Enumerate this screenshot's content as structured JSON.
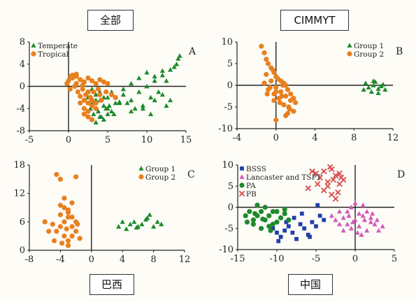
{
  "panel_titles": {
    "top_left": "全部",
    "top_right": "CIMMYT",
    "bottom_left": "巴西",
    "bottom_right": "中国"
  },
  "colors": {
    "green": "#1e8a2c",
    "orange": "#e8801e",
    "blue": "#1f3fa8",
    "magenta": "#d15ab8",
    "red": "#d94848",
    "axis": "#222222"
  },
  "chart_data": [
    {
      "panel_letter": "A",
      "type": "scatter",
      "xlim": [
        -5,
        15
      ],
      "ylim": [
        -8,
        8
      ],
      "xticks": [
        -5,
        0,
        5,
        10,
        15
      ],
      "yticks": [
        -8,
        -4,
        0,
        4,
        8
      ],
      "legend_position": "top-left",
      "series": [
        {
          "name": "Temperate",
          "marker": "triangle",
          "color": "#1e8a2c",
          "x": [
            2.5,
            3.0,
            3.5,
            4.0,
            4.5,
            5.0,
            5.5,
            6.0,
            2.8,
            3.2,
            3.8,
            4.2,
            4.8,
            5.2,
            5.8,
            6.5,
            3.0,
            3.5,
            4.0,
            4.5,
            5.0,
            5.5,
            2.5,
            3.0,
            3.5,
            4.0,
            4.5,
            5.0,
            6.0,
            7.0,
            8.0,
            9.0,
            10.0,
            11.0,
            12.0,
            13.0,
            14.0,
            7.5,
            8.5,
            9.5,
            10.5,
            11.5,
            12.5,
            13.5,
            8.0,
            9.0,
            10.0,
            11.0,
            12.0,
            13.0,
            6.5,
            7.0,
            8.0,
            9.5,
            11.0,
            12.5,
            13.8,
            14.2,
            12.0,
            10.5
          ],
          "y": [
            -2.0,
            -3.0,
            -1.5,
            -2.5,
            -3.5,
            -2.0,
            -1.0,
            -3.0,
            -4.0,
            -5.0,
            -4.5,
            -5.5,
            -4.0,
            -3.5,
            -5.0,
            -3.0,
            -6.0,
            -6.5,
            -5.5,
            -6.0,
            -5.0,
            -4.5,
            -1.0,
            -0.5,
            -2.5,
            -1.0,
            -2.0,
            -4.0,
            -2.0,
            -1.5,
            -2.5,
            -1.0,
            0.0,
            1.0,
            2.0,
            3.0,
            5.0,
            -3.0,
            -4.0,
            -3.5,
            -2.0,
            -1.0,
            1.0,
            3.5,
            0.5,
            1.5,
            2.5,
            1.8,
            -1.5,
            -2.5,
            -2.8,
            -0.5,
            -4.5,
            -4.0,
            -2.5,
            -3.5,
            4.0,
            5.5,
            2.8,
            -5.0
          ]
        },
        {
          "name": "Tropical",
          "marker": "circle",
          "color": "#e8801e",
          "x": [
            0.0,
            0.5,
            1.0,
            1.5,
            2.0,
            2.5,
            3.0,
            3.5,
            4.0,
            4.5,
            5.0,
            0.2,
            0.8,
            1.2,
            1.8,
            2.2,
            2.8,
            3.2,
            3.8,
            4.2,
            0.5,
            1.0,
            1.5,
            2.0,
            2.5,
            3.0,
            1.5,
            2.0,
            2.5,
            3.0,
            3.5,
            4.0,
            2.0,
            2.5,
            3.0,
            -0.2,
            0.3,
            1.0,
            4.8,
            5.5,
            6.0,
            3.5,
            2.5,
            1.8
          ],
          "y": [
            1.0,
            1.5,
            0.5,
            1.2,
            0.8,
            1.5,
            1.0,
            0.5,
            1.2,
            0.8,
            0.5,
            -0.5,
            0.0,
            -1.0,
            -0.5,
            -1.5,
            -2.0,
            -1.0,
            -0.5,
            -2.5,
            2.0,
            1.8,
            -1.8,
            -2.5,
            -3.0,
            -3.5,
            -3.0,
            -4.0,
            -4.5,
            -2.5,
            -3.0,
            -1.5,
            -5.0,
            -5.5,
            -6.0,
            0.5,
            1.8,
            2.2,
            -1.0,
            -1.5,
            -2.0,
            -4.0,
            -1.0,
            0.2
          ]
        }
      ]
    },
    {
      "panel_letter": "B",
      "type": "scatter",
      "xlim": [
        -4,
        12
      ],
      "ylim": [
        -10,
        10
      ],
      "xticks": [
        -4,
        0,
        4,
        8,
        12
      ],
      "yticks": [
        -10,
        -5,
        0,
        5,
        10
      ],
      "legend_position": "top-right",
      "series": [
        {
          "name": "Group 1",
          "marker": "triangle",
          "color": "#1e8a2c",
          "x": [
            9.0,
            9.5,
            10.0,
            10.5,
            11.0,
            9.2,
            9.8,
            10.2,
            10.8,
            11.2,
            10.0,
            10.5
          ],
          "y": [
            -1.0,
            -0.5,
            0.0,
            -0.8,
            0.2,
            0.5,
            -1.5,
            0.8,
            -0.2,
            -1.0,
            1.0,
            -1.8
          ]
        },
        {
          "name": "Group 2",
          "marker": "circle",
          "color": "#e8801e",
          "x": [
            -1.5,
            -1.2,
            -1.0,
            -0.8,
            -0.5,
            -0.2,
            0.0,
            0.2,
            0.5,
            0.8,
            1.0,
            1.2,
            1.5,
            1.8,
            2.0,
            -1.0,
            -0.5,
            0.0,
            0.5,
            1.0,
            1.5,
            -0.8,
            -0.2,
            0.3,
            0.8,
            1.3,
            1.8,
            -1.2,
            -0.6,
            0.0,
            0.6,
            1.2,
            -0.3,
            0.4,
            1.0,
            -0.9,
            -0.2,
            0.7,
            1.4,
            0.0
          ],
          "y": [
            9.0,
            7.5,
            6.0,
            5.0,
            4.0,
            3.0,
            2.0,
            1.5,
            1.0,
            0.5,
            0.0,
            -1.0,
            -2.0,
            -3.0,
            -4.0,
            2.5,
            1.0,
            -0.5,
            -1.5,
            -2.5,
            -3.5,
            -1.0,
            -2.0,
            -3.0,
            -4.5,
            -5.0,
            -6.0,
            0.5,
            -0.5,
            -1.5,
            -2.5,
            -6.5,
            3.5,
            -4.0,
            -7.0,
            -2.0,
            -3.5,
            0.0,
            -5.5,
            -8.0
          ]
        }
      ]
    },
    {
      "panel_letter": "C",
      "type": "scatter",
      "xlim": [
        -8,
        12
      ],
      "ylim": [
        0,
        18
      ],
      "xticks": [
        -8,
        -4,
        0,
        4,
        8,
        12
      ],
      "yticks": [
        0,
        6,
        12,
        18
      ],
      "legend_position": "top-right",
      "series": [
        {
          "name": "Group 1",
          "marker": "triangle",
          "color": "#1e8a2c",
          "x": [
            3.5,
            4.5,
            5.0,
            5.5,
            6.0,
            6.5,
            7.0,
            7.5,
            8.0,
            8.5,
            9.0,
            4.0,
            5.8,
            7.2
          ],
          "y": [
            5.0,
            4.5,
            5.5,
            6.0,
            5.0,
            5.5,
            6.5,
            7.5,
            5.0,
            6.0,
            5.5,
            6.0,
            4.8,
            6.8
          ]
        },
        {
          "name": "Group 2",
          "marker": "circle",
          "color": "#e8801e",
          "x": [
            -4.5,
            -4.0,
            -3.5,
            -3.0,
            -2.5,
            -2.0,
            -4.0,
            -3.5,
            -3.0,
            -2.5,
            -4.5,
            -3.5,
            -3.0,
            -2.5,
            -2.0,
            -4.0,
            -3.0,
            -2.0,
            -5.0,
            -5.5,
            -6.0,
            -3.0,
            -1.5,
            -4.0,
            -3.5,
            -2.5,
            -4.8,
            -3.2,
            -1.8,
            -3.8
          ],
          "y": [
            16.0,
            15.0,
            9.0,
            8.0,
            7.0,
            6.0,
            5.0,
            6.0,
            7.0,
            5.0,
            4.0,
            3.0,
            2.0,
            3.0,
            4.0,
            9.5,
            8.5,
            15.5,
            5.5,
            4.0,
            6.0,
            1.0,
            2.5,
            7.5,
            11.0,
            10.0,
            2.0,
            4.5,
            5.5,
            1.5
          ]
        }
      ]
    },
    {
      "panel_letter": "D",
      "type": "scatter",
      "xlim": [
        -15,
        5
      ],
      "ylim": [
        -10,
        10
      ],
      "xticks": [
        -15,
        -10,
        -5,
        0,
        5
      ],
      "yticks": [
        -10,
        -5,
        0,
        5,
        10
      ],
      "legend_position": "top-left",
      "series": [
        {
          "name": "BSSS",
          "marker": "square",
          "color": "#1f3fa8",
          "x": [
            -10.5,
            -10.0,
            -9.5,
            -9.0,
            -8.5,
            -8.0,
            -7.5,
            -7.0,
            -6.5,
            -6.0,
            -5.5,
            -5.0,
            -4.5,
            -4.0,
            -9.8,
            -8.8,
            -7.8,
            -6.8,
            -5.8,
            -4.8
          ],
          "y": [
            -5.0,
            -6.0,
            -7.0,
            -5.5,
            -4.5,
            -6.0,
            -7.5,
            -4.0,
            -5.0,
            -6.5,
            -3.5,
            -4.5,
            -2.0,
            -3.0,
            -8.0,
            -3.5,
            -2.5,
            -1.5,
            -7.0,
            0.5
          ]
        },
        {
          "name": "Lancaster and TSPT",
          "marker": "triangle",
          "color": "#d15ab8",
          "x": [
            -3.0,
            -2.5,
            -2.0,
            -1.5,
            -1.0,
            -0.5,
            0.0,
            0.5,
            1.0,
            1.5,
            2.0,
            2.5,
            3.0,
            3.5,
            -1.0,
            -0.5,
            0.0,
            0.5,
            1.0,
            1.5,
            2.0,
            -2.0,
            -1.5,
            -0.8,
            0.3,
            1.2,
            2.2,
            2.8,
            0.8,
            -0.3
          ],
          "y": [
            -2.0,
            -3.0,
            -1.0,
            -2.5,
            -4.0,
            -5.0,
            -3.0,
            -4.5,
            -2.0,
            -5.5,
            -3.5,
            -4.0,
            -5.5,
            -4.5,
            -1.0,
            0.0,
            1.0,
            -1.5,
            0.5,
            -1.0,
            -2.5,
            -4.0,
            -5.5,
            -2.0,
            -6.0,
            -3.0,
            -1.5,
            -3.0,
            -6.5,
            -3.5
          ]
        },
        {
          "name": "PA",
          "marker": "circle",
          "color": "#1e8a2c",
          "x": [
            -14.0,
            -13.5,
            -13.0,
            -12.5,
            -12.0,
            -11.5,
            -11.0,
            -10.5,
            -10.0,
            -9.5,
            -9.0,
            -8.5,
            -13.0,
            -12.0,
            -11.0,
            -10.0,
            -9.0,
            -12.5,
            -11.5,
            -10.5,
            -13.8,
            -12.8,
            -11.8,
            -10.8
          ],
          "y": [
            -2.0,
            -1.0,
            -3.0,
            -2.0,
            -1.0,
            -3.0,
            -2.0,
            -4.0,
            -1.0,
            -2.5,
            -1.5,
            -3.0,
            -4.0,
            -5.0,
            -4.5,
            -3.5,
            -0.5,
            0.5,
            0.0,
            -1.0,
            -3.5,
            -1.5,
            -2.8,
            -5.5
          ]
        },
        {
          "name": "PB",
          "marker": "cross",
          "color": "#d94848",
          "x": [
            -5.0,
            -4.5,
            -4.0,
            -3.5,
            -3.0,
            -2.5,
            -2.0,
            -1.5,
            -4.0,
            -3.5,
            -3.0,
            -2.5,
            -2.0,
            -5.5,
            -6.0,
            -3.2,
            -2.2,
            -1.8,
            -4.8,
            -2.8
          ],
          "y": [
            8.0,
            7.0,
            8.5,
            6.0,
            9.0,
            7.5,
            8.0,
            6.5,
            4.0,
            5.0,
            3.0,
            2.0,
            5.5,
            8.5,
            4.5,
            9.5,
            3.5,
            7.0,
            5.5,
            6.5
          ]
        }
      ]
    }
  ]
}
